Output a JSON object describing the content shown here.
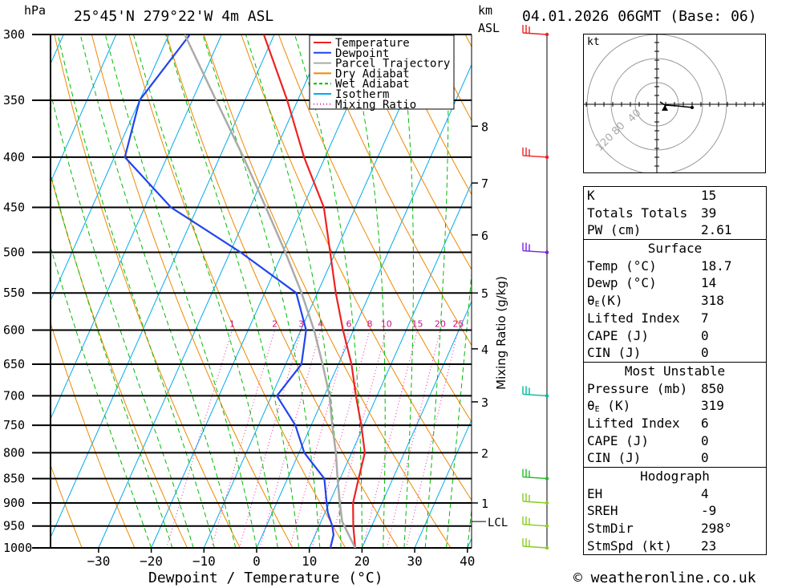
{
  "header": {
    "coords": "25°45'N 279°22'W 4m ASL",
    "datetime": "04.01.2026 06GMT (Base: 06)",
    "km_unit": "km",
    "asl_unit": "ASL",
    "hpa_unit": "hPa"
  },
  "chart_data": {
    "type": "line",
    "title": "25°45'N 279°22'W 4m ASL",
    "xlabel": "Dewpoint / Temperature (°C)",
    "ylabel": "hPa",
    "x_ticks": [
      -30,
      -20,
      -10,
      0,
      10,
      20,
      30,
      40
    ],
    "pressure_levels": [
      300,
      350,
      400,
      450,
      500,
      550,
      600,
      650,
      700,
      750,
      800,
      850,
      900,
      950,
      1000
    ],
    "km_ticks": [
      {
        "label": "8",
        "p": 372
      },
      {
        "label": "7",
        "p": 425
      },
      {
        "label": "6",
        "p": 480
      },
      {
        "label": "5",
        "p": 550
      },
      {
        "label": "4",
        "p": 627
      },
      {
        "label": "3",
        "p": 710
      },
      {
        "label": "2",
        "p": 800
      },
      {
        "label": "1",
        "p": 900
      }
    ],
    "lcl": {
      "label": "LCL",
      "p": 940
    },
    "mixing_ratio_labels": [
      "1",
      "2",
      "3",
      "4",
      "6",
      "8",
      "10",
      "15",
      "20",
      "25"
    ],
    "mixing_ratio_axis_label": "Mixing Ratio (g/kg)",
    "series": [
      {
        "name": "Temperature",
        "color": "#ee2222",
        "points": [
          [
            1000,
            18.7
          ],
          [
            950,
            16.5
          ],
          [
            900,
            14.5
          ],
          [
            850,
            13.5
          ],
          [
            800,
            12.5
          ],
          [
            750,
            9.5
          ],
          [
            700,
            6
          ],
          [
            650,
            2.5
          ],
          [
            600,
            -2
          ],
          [
            550,
            -6.5
          ],
          [
            500,
            -11
          ],
          [
            450,
            -16
          ],
          [
            400,
            -24
          ],
          [
            350,
            -32
          ],
          [
            300,
            -42
          ]
        ]
      },
      {
        "name": "Dewpoint",
        "color": "#2244ee",
        "points": [
          [
            1000,
            14
          ],
          [
            970,
            13.5
          ],
          [
            950,
            12.5
          ],
          [
            920,
            10.5
          ],
          [
            900,
            9.5
          ],
          [
            850,
            7
          ],
          [
            800,
            1
          ],
          [
            750,
            -3
          ],
          [
            700,
            -9
          ],
          [
            650,
            -7
          ],
          [
            600,
            -9
          ],
          [
            550,
            -14
          ],
          [
            500,
            -28
          ],
          [
            450,
            -45
          ],
          [
            400,
            -58
          ],
          [
            350,
            -60
          ],
          [
            300,
            -56
          ]
        ]
      },
      {
        "name": "Parcel Trajectory",
        "color": "#aaaaaa",
        "points": [
          [
            1000,
            18.7
          ],
          [
            940,
            14
          ],
          [
            900,
            12
          ],
          [
            850,
            9.5
          ],
          [
            800,
            7
          ],
          [
            750,
            4
          ],
          [
            700,
            1
          ],
          [
            650,
            -3
          ],
          [
            600,
            -7.5
          ],
          [
            550,
            -13
          ],
          [
            500,
            -19.5
          ],
          [
            450,
            -27
          ],
          [
            400,
            -35.5
          ],
          [
            350,
            -45.5
          ],
          [
            300,
            -57
          ]
        ]
      }
    ],
    "legend": [
      {
        "name": "Temperature",
        "color": "#ee2222",
        "style": "solid"
      },
      {
        "name": "Dewpoint",
        "color": "#2244ee",
        "style": "solid"
      },
      {
        "name": "Parcel Trajectory",
        "color": "#aaaaaa",
        "style": "solid"
      },
      {
        "name": "Dry Adiabat",
        "color": "#ee8800",
        "style": "solid"
      },
      {
        "name": "Wet Adiabat",
        "color": "#00bb00",
        "style": "dashed"
      },
      {
        "name": "Isotherm",
        "color": "#00aaee",
        "style": "solid"
      },
      {
        "name": "Mixing Ratio",
        "color": "#ee22aa",
        "style": "dotted"
      }
    ],
    "wind_barbs_levels": [
      300,
      400,
      500,
      700,
      850,
      900,
      950,
      1000
    ]
  },
  "hodograph": {
    "unit": "kt",
    "rings": [
      "40",
      "80",
      "120"
    ]
  },
  "stats": {
    "k": {
      "label": "K",
      "value": "15"
    },
    "tt": {
      "label": "Totals Totals",
      "value": "39"
    },
    "pw": {
      "label": "PW (cm)",
      "value": "2.61"
    },
    "surface": {
      "title": "Surface",
      "temp": {
        "label": "Temp (°C)",
        "value": "18.7"
      },
      "dewp": {
        "label": "Dewp (°C)",
        "value": "14"
      },
      "thetae": {
        "label": "θ",
        "sub": "E",
        "suffix": "(K)",
        "value": "318"
      },
      "li": {
        "label": "Lifted Index",
        "value": "7"
      },
      "cape": {
        "label": "CAPE (J)",
        "value": "0"
      },
      "cin": {
        "label": "CIN (J)",
        "value": "0"
      }
    },
    "mu": {
      "title": "Most Unstable",
      "pressure": {
        "label": "Pressure (mb)",
        "value": "850"
      },
      "thetae": {
        "label": "θ",
        "sub": "E",
        "suffix": " (K)",
        "value": "319"
      },
      "li": {
        "label": "Lifted Index",
        "value": "6"
      },
      "cape": {
        "label": "CAPE (J)",
        "value": "0"
      },
      "cin": {
        "label": "CIN (J)",
        "value": "0"
      }
    },
    "hodo": {
      "title": "Hodograph",
      "eh": {
        "label": "EH",
        "value": "4"
      },
      "sreh": {
        "label": "SREH",
        "value": "-9"
      },
      "stmdir": {
        "label": "StmDir",
        "value": "298°"
      },
      "stmspd": {
        "label": "StmSpd (kt)",
        "value": "23"
      }
    }
  },
  "credit": "© weatheronline.co.uk"
}
